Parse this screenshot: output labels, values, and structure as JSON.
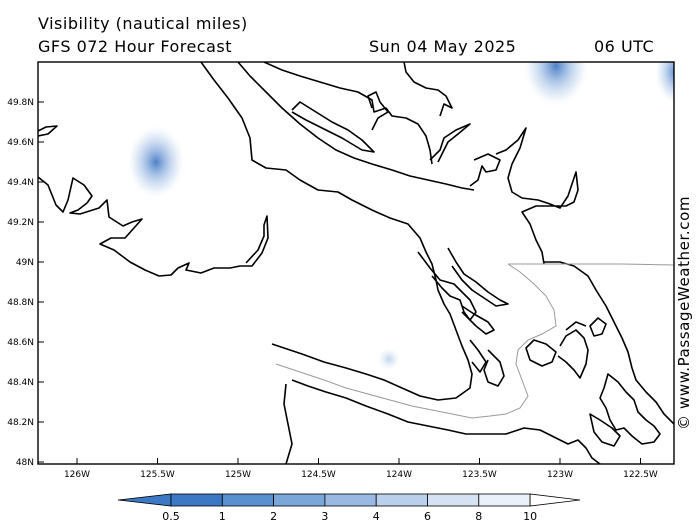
{
  "header": {
    "variable": "Visibility (nautical miles)",
    "model": "GFS 072 Hour Forecast",
    "date": "Sun 04 May 2025",
    "time": "06 UTC"
  },
  "credit": "© www.PassageWeather.com",
  "map": {
    "lat_labels": [
      "49.8N",
      "49.6N",
      "49.4N",
      "49.2N",
      "49N",
      "48.8N",
      "48.6N",
      "48.4N",
      "48.2N",
      "48N"
    ],
    "lon_labels": [
      "126W",
      "125.5W",
      "125W",
      "124.5W",
      "124W",
      "123.5W",
      "123W",
      "122.5W"
    ],
    "colors": {
      "coast": "#000000",
      "border": "#999999",
      "fog": "#3a73c0"
    }
  },
  "legend": {
    "labels": [
      "0.5",
      "1",
      "2",
      "3",
      "4",
      "6",
      "8",
      "10"
    ],
    "colors": [
      "#3c78c3",
      "#5a8fd0",
      "#7aa6da",
      "#9ab9e2",
      "#b9cfeb",
      "#d5e2f3",
      "#ebf1f9"
    ]
  }
}
